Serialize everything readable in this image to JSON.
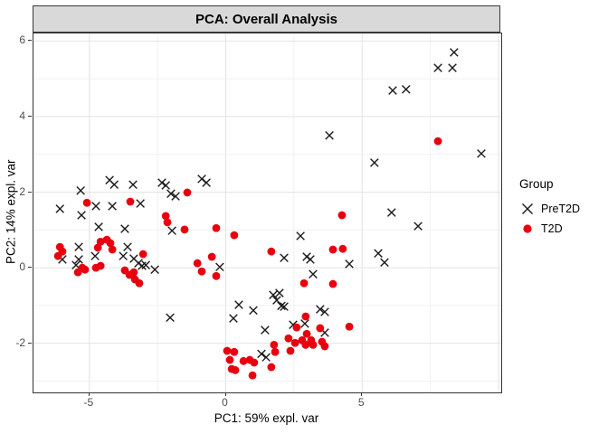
{
  "title": "PCA: Overall Analysis",
  "legend": {
    "title": "Group",
    "items": [
      {
        "label": "PreT2D",
        "marker": "x-cross",
        "color": "#1a1a1a"
      },
      {
        "label": "T2D",
        "marker": "filled-circle",
        "color": "#e8000f"
      }
    ]
  },
  "colors": {
    "strip_bg": "#d9d9d9",
    "panel_border": "#333333",
    "grid_major": "#e3e3e3",
    "grid_minor": "#f1f1f1",
    "tick_label": "#4d4d4d",
    "pret2d": "#1a1a1a",
    "t2d": "#e8000f"
  },
  "chart_data": {
    "type": "scatter",
    "title": "PCA: Overall Analysis",
    "xlabel": "PC1: 59% expl. var",
    "ylabel": "PC2: 14% expl. var",
    "xlim": [
      -7.05,
      10.1
    ],
    "ylim": [
      -3.3,
      6.2
    ],
    "x_ticks": [
      -5,
      0,
      5
    ],
    "y_ticks": [
      6,
      4,
      2,
      0,
      -2
    ],
    "x_grid_major": [
      -5,
      0,
      5,
      10
    ],
    "x_grid_minor": [
      -2.5,
      2.5,
      7.5
    ],
    "y_grid_major": [
      -2,
      0,
      2,
      4,
      6
    ],
    "y_grid_minor": [
      -3,
      -1,
      1,
      3,
      5
    ],
    "grid": true,
    "legend_position": "right",
    "legend_title": "Group",
    "series": [
      {
        "name": "PreT2D",
        "marker": "x",
        "color": "#1a1a1a",
        "points": [
          [
            8.37,
            5.7
          ],
          [
            7.78,
            5.29
          ],
          [
            8.31,
            5.29
          ],
          [
            6.12,
            4.69
          ],
          [
            6.61,
            4.72
          ],
          [
            9.37,
            3.02
          ],
          [
            5.45,
            2.78
          ],
          [
            3.8,
            3.5
          ],
          [
            6.08,
            1.46
          ],
          [
            7.05,
            1.1
          ],
          [
            5.59,
            0.38
          ],
          [
            5.82,
            0.14
          ],
          [
            4.53,
            0.1
          ],
          [
            -0.88,
            2.35
          ],
          [
            -0.71,
            2.25
          ],
          [
            -4.26,
            2.32
          ],
          [
            -4.09,
            2.2
          ],
          [
            -3.4,
            2.2
          ],
          [
            -2.34,
            2.25
          ],
          [
            -2.2,
            2.18
          ],
          [
            -5.32,
            2.04
          ],
          [
            -2.01,
            1.96
          ],
          [
            -1.84,
            1.89
          ],
          [
            -6.08,
            1.56
          ],
          [
            -5.29,
            1.39
          ],
          [
            -4.76,
            1.63
          ],
          [
            -4.16,
            1.63
          ],
          [
            -3.13,
            1.7
          ],
          [
            -4.66,
            1.08
          ],
          [
            -3.7,
            1.03
          ],
          [
            -1.97,
            0.98
          ],
          [
            -5.39,
            0.55
          ],
          [
            -5.99,
            0.22
          ],
          [
            -5.49,
            0.07
          ],
          [
            -5.39,
            0.22
          ],
          [
            -4.79,
            0.31
          ],
          [
            -3.6,
            0.55
          ],
          [
            -3.76,
            0.31
          ],
          [
            -3.37,
            0.24
          ],
          [
            -3.2,
            0.12
          ],
          [
            -3.07,
            0.05
          ],
          [
            -2.93,
            0.07
          ],
          [
            -2.6,
            -0.05
          ],
          [
            -0.22,
            0.02
          ],
          [
            -2.04,
            -1.32
          ],
          [
            2.74,
            0.84
          ],
          [
            2.14,
            0.26
          ],
          [
            2.97,
            0.29
          ],
          [
            3.1,
            0.22
          ],
          [
            3.2,
            -0.17
          ],
          [
            1.74,
            -0.72
          ],
          [
            1.97,
            -0.67
          ],
          [
            1.87,
            -0.86
          ],
          [
            2.04,
            -1.01
          ],
          [
            2.14,
            -1.03
          ],
          [
            0.48,
            -0.98
          ],
          [
            1.01,
            -1.13
          ],
          [
            0.28,
            -1.34
          ],
          [
            1.44,
            -1.65
          ],
          [
            3.46,
            -1.1
          ],
          [
            3.63,
            -1.17
          ],
          [
            2.47,
            -1.51
          ],
          [
            2.9,
            -1.48
          ],
          [
            3.63,
            -1.72
          ],
          [
            1.31,
            -2.28
          ],
          [
            1.48,
            -2.37
          ]
        ]
      },
      {
        "name": "T2D",
        "marker": "circle",
        "color": "#e8000f",
        "points": [
          [
            7.78,
            3.35
          ],
          [
            4.26,
            1.39
          ],
          [
            -1.41,
            1.99
          ],
          [
            -5.09,
            1.72
          ],
          [
            -3.5,
            1.75
          ],
          [
            -2.2,
            1.37
          ],
          [
            -2.14,
            1.2
          ],
          [
            -1.51,
            1.01
          ],
          [
            -0.35,
            1.05
          ],
          [
            0.31,
            0.86
          ],
          [
            -1.04,
            0.12
          ],
          [
            -0.51,
            0.29
          ],
          [
            -0.88,
            -0.1
          ],
          [
            -0.35,
            -0.22
          ],
          [
            1.67,
            0.43
          ],
          [
            3.93,
            0.48
          ],
          [
            4.29,
            0.5
          ],
          [
            2.87,
            -0.41
          ],
          [
            3.93,
            -0.43
          ],
          [
            -6.08,
            0.55
          ],
          [
            -5.99,
            0.43
          ],
          [
            -6.15,
            0.31
          ],
          [
            -4.69,
            0.53
          ],
          [
            -4.59,
            0.69
          ],
          [
            -4.36,
            0.74
          ],
          [
            -4.23,
            0.65
          ],
          [
            -4.16,
            0.48
          ],
          [
            -5.26,
            0
          ],
          [
            -5.42,
            -0.12
          ],
          [
            -5.16,
            -0.05
          ],
          [
            -4.76,
            0
          ],
          [
            -4.59,
            0.05
          ],
          [
            -3.03,
            0.36
          ],
          [
            -3.7,
            -0.07
          ],
          [
            -3.53,
            -0.19
          ],
          [
            -3.37,
            -0.12
          ],
          [
            -3.33,
            -0.31
          ],
          [
            -3.17,
            -0.41
          ],
          [
            2.6,
            -1.58
          ],
          [
            2.97,
            -1.75
          ],
          [
            3.46,
            -1.6
          ],
          [
            4.53,
            -1.56
          ],
          [
            2.93,
            -1.29
          ],
          [
            3.53,
            -1.96
          ],
          [
            3.63,
            -2.08
          ],
          [
            3.13,
            -1.92
          ],
          [
            3.2,
            -2.04
          ],
          [
            2.8,
            -1.92
          ],
          [
            2.93,
            -2.04
          ],
          [
            2.54,
            -1.99
          ],
          [
            2.3,
            -1.87
          ],
          [
            2.37,
            -2.2
          ],
          [
            1.77,
            -2.04
          ],
          [
            1.81,
            -2.23
          ],
          [
            1.67,
            -2.63
          ],
          [
            0.05,
            -2.2
          ],
          [
            0.31,
            -2.23
          ],
          [
            0.15,
            -2.44
          ],
          [
            0.22,
            -2.68
          ],
          [
            0.65,
            -2.47
          ],
          [
            0.88,
            -2.44
          ],
          [
            1.04,
            -2.51
          ],
          [
            0.35,
            -2.71
          ],
          [
            0.98,
            -2.85
          ]
        ]
      }
    ]
  }
}
